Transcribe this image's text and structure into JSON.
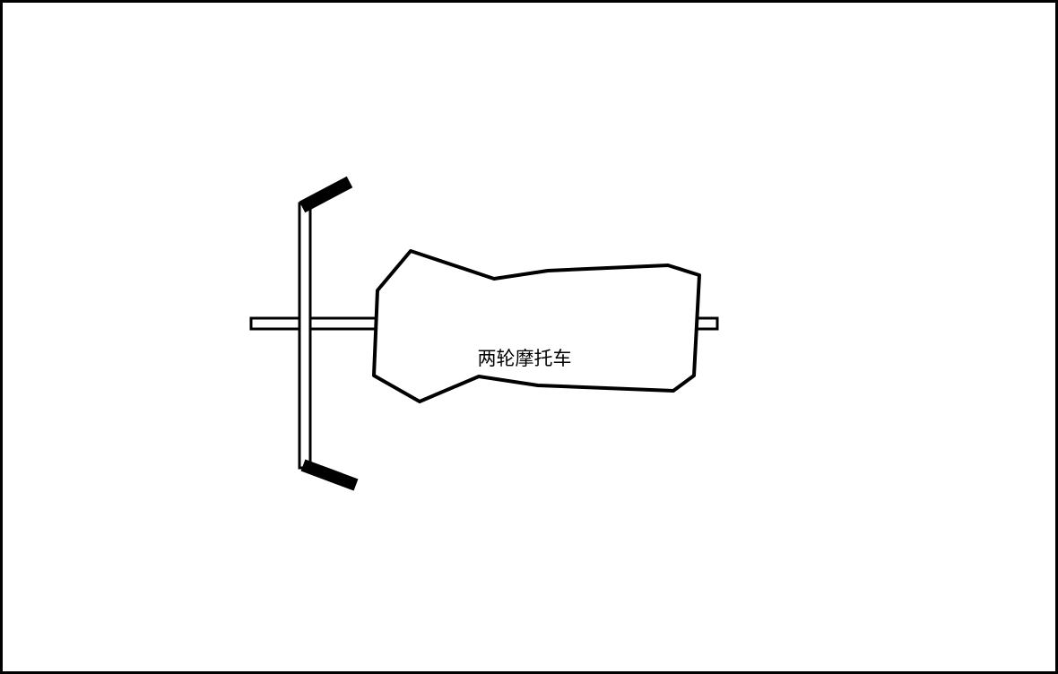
{
  "diagram": {
    "title": "",
    "body_label": "两轮摩托车",
    "colors": {
      "stroke": "#000000",
      "background": "#ffffff"
    }
  }
}
